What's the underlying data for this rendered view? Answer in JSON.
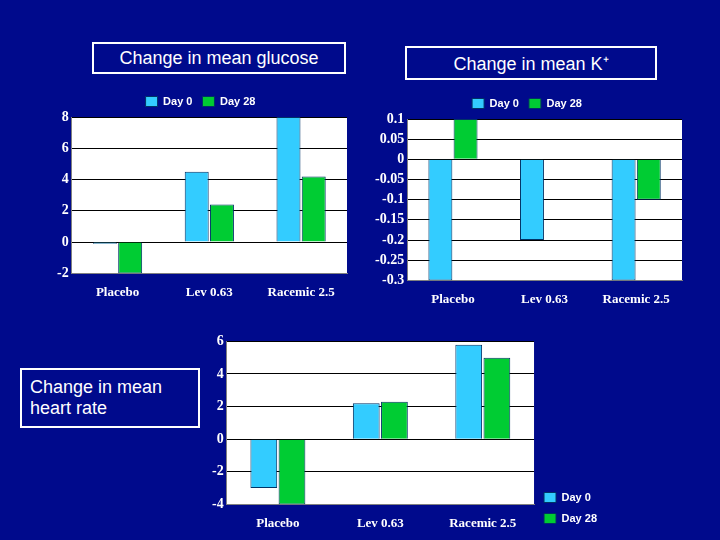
{
  "chart_data": [
    {
      "type": "bar",
      "title": "Change in mean glucose",
      "categories": [
        "Placebo",
        "Lev 0.63",
        "Racemic 2.5"
      ],
      "series": [
        {
          "name": "Day 0",
          "color": "#33ccff",
          "values": [
            -0.1,
            4.5,
            8
          ]
        },
        {
          "name": "Day 28",
          "color": "#00cc33",
          "values": [
            -2,
            2.4,
            4.2
          ]
        }
      ],
      "ylim": [
        -2,
        8
      ],
      "yticks": [
        -2,
        0,
        2,
        4,
        6,
        8
      ],
      "grid": true,
      "legend": "top"
    },
    {
      "type": "bar",
      "title": "Change in mean K⁺",
      "categories": [
        "Placebo",
        "Lev 0.63",
        "Racemic 2.5"
      ],
      "series": [
        {
          "name": "Day 0",
          "color": "#33ccff",
          "values": [
            -0.3,
            -0.2,
            -0.3
          ]
        },
        {
          "name": "Day 28",
          "color": "#00cc33",
          "values": [
            0.1,
            0,
            -0.1
          ]
        }
      ],
      "ylim": [
        -0.3,
        0.1
      ],
      "yticks": [
        -0.3,
        -0.25,
        -0.2,
        -0.15,
        -0.1,
        -0.05,
        0,
        0.05,
        0.1
      ],
      "grid": true,
      "legend": "top"
    },
    {
      "type": "bar",
      "title": "Change in mean heart rate",
      "categories": [
        "Placebo",
        "Lev 0.63",
        "Racemic 2.5"
      ],
      "series": [
        {
          "name": "Day 0",
          "color": "#33ccff",
          "values": [
            -3,
            2.2,
            5.8
          ]
        },
        {
          "name": "Day 28",
          "color": "#00cc33",
          "values": [
            -4,
            2.3,
            5
          ]
        }
      ],
      "ylim": [
        -4,
        6
      ],
      "yticks": [
        -4,
        -2,
        0,
        2,
        4,
        6
      ],
      "grid": true,
      "legend": "right"
    }
  ]
}
